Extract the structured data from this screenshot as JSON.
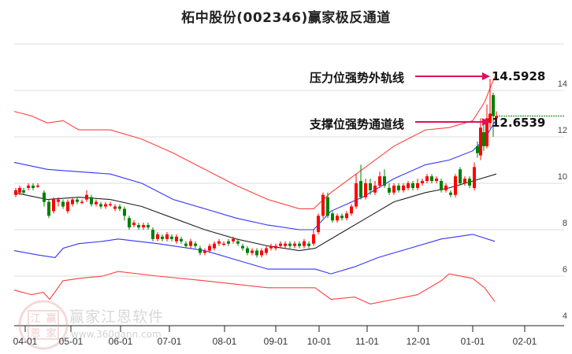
{
  "title": "柘中股份(002346)赢家极反通道",
  "annotations": {
    "pressure": {
      "label": "压力位强势外轨线",
      "value": "14.5928"
    },
    "support": {
      "label": "支撑位强势通道线",
      "value": "12.6539"
    }
  },
  "watermark": {
    "text": "赢家江恩软件",
    "url": "www.360gann.com",
    "seal": [
      "江",
      "赢",
      "恩",
      "家"
    ]
  },
  "colors": {
    "up": "#ff0000",
    "down": "#008000",
    "outer_band": "#ff4040",
    "inner_band": "#3333ff",
    "mid": "#222222",
    "arrow": "#e0105a"
  },
  "chart_data": {
    "type": "candlestick",
    "title": "柘中股份(002346)赢家极反通道",
    "xlabel": "",
    "ylabel": "",
    "ylim": [
      4,
      16
    ],
    "y_ticks": [
      4,
      6,
      8,
      10,
      12,
      14
    ],
    "x_ticks": [
      "04-01",
      "05-01",
      "06-01",
      "07-01",
      "08-01",
      "09-01",
      "10-01",
      "11-01",
      "12-01",
      "01-01",
      "02-01"
    ],
    "grid": true,
    "legend": null,
    "annotations": [
      {
        "text": "压力位强势外轨线",
        "value": 14.5928
      },
      {
        "text": "支撑位强势通道线",
        "value": 12.6539
      }
    ],
    "last_price_line": 12.9,
    "series": [
      {
        "name": "upper_outer_band",
        "color": "red",
        "points": [
          [
            18,
            13.1
          ],
          [
            40,
            12.9
          ],
          [
            60,
            12.6
          ],
          [
            80,
            12.7
          ],
          [
            100,
            12.3
          ],
          [
            140,
            12.3
          ],
          [
            180,
            11.9
          ],
          [
            220,
            11.3
          ],
          [
            260,
            10.6
          ],
          [
            300,
            9.9
          ],
          [
            340,
            9.3
          ],
          [
            380,
            8.9
          ],
          [
            398,
            8.9
          ],
          [
            420,
            9.6
          ],
          [
            460,
            10.6
          ],
          [
            500,
            11.6
          ],
          [
            540,
            12.3
          ],
          [
            570,
            12.4
          ],
          [
            600,
            12.7
          ],
          [
            615,
            13.5
          ],
          [
            628,
            14.59
          ]
        ]
      },
      {
        "name": "upper_inner_band",
        "color": "blue",
        "points": [
          [
            18,
            10.9
          ],
          [
            60,
            10.6
          ],
          [
            100,
            10.5
          ],
          [
            140,
            10.4
          ],
          [
            180,
            10.0
          ],
          [
            220,
            9.3
          ],
          [
            260,
            8.9
          ],
          [
            300,
            8.5
          ],
          [
            340,
            8.2
          ],
          [
            380,
            8.0
          ],
          [
            398,
            8.0
          ],
          [
            420,
            8.8
          ],
          [
            460,
            9.4
          ],
          [
            500,
            10.2
          ],
          [
            540,
            10.8
          ],
          [
            570,
            11.0
          ],
          [
            600,
            11.4
          ],
          [
            615,
            11.9
          ],
          [
            628,
            12.65
          ]
        ]
      },
      {
        "name": "middle_line",
        "color": "black",
        "points": [
          [
            18,
            9.6
          ],
          [
            60,
            9.3
          ],
          [
            100,
            9.4
          ],
          [
            140,
            9.3
          ],
          [
            180,
            9.0
          ],
          [
            220,
            8.5
          ],
          [
            260,
            8.0
          ],
          [
            300,
            7.6
          ],
          [
            340,
            7.3
          ],
          [
            380,
            7.1
          ],
          [
            400,
            7.2
          ],
          [
            430,
            7.8
          ],
          [
            470,
            8.6
          ],
          [
            500,
            9.2
          ],
          [
            540,
            9.6
          ],
          [
            570,
            9.8
          ],
          [
            600,
            10.1
          ],
          [
            630,
            10.4
          ]
        ]
      },
      {
        "name": "lower_inner_band",
        "color": "blue",
        "points": [
          [
            18,
            7.1
          ],
          [
            50,
            6.9
          ],
          [
            70,
            6.8
          ],
          [
            80,
            7.2
          ],
          [
            100,
            7.4
          ],
          [
            130,
            7.5
          ],
          [
            150,
            7.6
          ],
          [
            200,
            7.4
          ],
          [
            260,
            7.1
          ],
          [
            300,
            6.7
          ],
          [
            340,
            6.3
          ],
          [
            400,
            6.3
          ],
          [
            420,
            6.1
          ],
          [
            450,
            6.4
          ],
          [
            480,
            6.8
          ],
          [
            520,
            7.2
          ],
          [
            560,
            7.6
          ],
          [
            600,
            7.8
          ],
          [
            628,
            7.5
          ]
        ]
      },
      {
        "name": "lower_outer_band",
        "color": "red",
        "points": [
          [
            18,
            5.4
          ],
          [
            40,
            5.2
          ],
          [
            55,
            5.3
          ],
          [
            63,
            5.0
          ],
          [
            80,
            5.8
          ],
          [
            100,
            5.9
          ],
          [
            130,
            6.0
          ],
          [
            150,
            6.2
          ],
          [
            200,
            6.0
          ],
          [
            260,
            5.8
          ],
          [
            340,
            5.5
          ],
          [
            400,
            5.5
          ],
          [
            420,
            5.0
          ],
          [
            450,
            5.1
          ],
          [
            470,
            4.8
          ],
          [
            500,
            5.0
          ],
          [
            530,
            5.2
          ],
          [
            560,
            5.8
          ],
          [
            570,
            6.1
          ],
          [
            600,
            5.9
          ],
          [
            615,
            5.5
          ],
          [
            628,
            4.9
          ]
        ]
      }
    ],
    "candles_approx": [
      [
        20,
        9.5,
        9.7,
        9.4,
        9.8
      ],
      [
        25,
        9.6,
        9.8,
        9.5,
        9.9
      ],
      [
        30,
        9.7,
        9.6,
        9.5,
        9.8
      ],
      [
        36,
        9.8,
        9.9,
        9.7,
        10.0
      ],
      [
        42,
        9.9,
        9.8,
        9.7,
        10.0
      ],
      [
        48,
        9.9,
        9.9,
        9.8,
        10.0
      ],
      [
        56,
        9.6,
        9.2,
        9.0,
        9.7
      ],
      [
        62,
        9.2,
        8.6,
        8.5,
        9.3
      ],
      [
        68,
        8.8,
        9.3,
        8.7,
        9.4
      ],
      [
        74,
        9.2,
        9.3,
        9.0,
        9.4
      ],
      [
        80,
        9.2,
        9.0,
        8.9,
        9.3
      ],
      [
        86,
        8.8,
        9.2,
        8.7,
        9.3
      ],
      [
        92,
        9.1,
        9.3,
        9.0,
        9.4
      ],
      [
        98,
        9.3,
        9.2,
        9.1,
        9.4
      ],
      [
        104,
        9.2,
        9.2,
        9.1,
        9.3
      ],
      [
        110,
        9.3,
        9.5,
        9.2,
        9.7
      ],
      [
        116,
        9.4,
        9.1,
        9.0,
        9.5
      ],
      [
        122,
        9.1,
        9.2,
        9.0,
        9.3
      ],
      [
        128,
        9.1,
        9.0,
        8.9,
        9.2
      ],
      [
        134,
        9.0,
        9.1,
        8.9,
        9.2
      ],
      [
        140,
        9.1,
        9.1,
        9.0,
        9.2
      ],
      [
        146,
        8.9,
        9.0,
        8.8,
        9.1
      ],
      [
        152,
        9.0,
        8.9,
        8.8,
        9.1
      ],
      [
        158,
        8.9,
        8.6,
        8.4,
        9.0
      ],
      [
        164,
        8.5,
        8.1,
        8.0,
        8.6
      ],
      [
        170,
        8.2,
        8.3,
        8.1,
        8.4
      ],
      [
        176,
        8.2,
        8.1,
        8.0,
        8.3
      ],
      [
        182,
        8.1,
        8.2,
        8.0,
        8.3
      ],
      [
        188,
        8.2,
        8.1,
        8.0,
        8.3
      ],
      [
        194,
        8.0,
        7.6,
        7.5,
        8.1
      ],
      [
        200,
        7.6,
        7.8,
        7.5,
        7.9
      ],
      [
        206,
        7.7,
        7.6,
        7.5,
        7.8
      ],
      [
        212,
        7.6,
        7.8,
        7.5,
        7.9
      ],
      [
        218,
        7.7,
        7.6,
        7.5,
        7.8
      ],
      [
        224,
        7.5,
        7.7,
        7.4,
        7.8
      ],
      [
        230,
        7.6,
        7.5,
        7.4,
        7.7
      ],
      [
        236,
        7.4,
        7.3,
        7.2,
        7.5
      ],
      [
        242,
        7.3,
        7.5,
        7.2,
        7.6
      ],
      [
        248,
        7.4,
        7.3,
        7.2,
        7.5
      ],
      [
        254,
        7.2,
        7.0,
        6.9,
        7.3
      ],
      [
        260,
        7.0,
        7.1,
        6.9,
        7.2
      ],
      [
        266,
        7.1,
        7.3,
        7.0,
        7.4
      ],
      [
        272,
        7.2,
        7.4,
        7.1,
        7.5
      ],
      [
        278,
        7.4,
        7.5,
        7.3,
        7.6
      ],
      [
        284,
        7.4,
        7.4,
        7.3,
        7.5
      ],
      [
        290,
        7.5,
        7.4,
        7.3,
        7.6
      ],
      [
        296,
        7.5,
        7.6,
        7.4,
        7.7
      ],
      [
        302,
        7.5,
        7.4,
        7.3,
        7.6
      ],
      [
        308,
        7.3,
        7.2,
        7.1,
        7.4
      ],
      [
        314,
        7.2,
        7.0,
        6.9,
        7.3
      ],
      [
        320,
        7.0,
        7.1,
        6.9,
        7.2
      ],
      [
        326,
        7.1,
        6.9,
        6.8,
        7.2
      ],
      [
        332,
        6.9,
        7.1,
        6.8,
        7.2
      ],
      [
        338,
        7.0,
        7.2,
        6.9,
        7.3
      ],
      [
        344,
        7.2,
        7.3,
        7.1,
        7.4
      ],
      [
        350,
        7.2,
        7.3,
        7.1,
        7.4
      ],
      [
        356,
        7.3,
        7.4,
        7.2,
        7.5
      ],
      [
        362,
        7.3,
        7.4,
        7.2,
        7.5
      ],
      [
        368,
        7.4,
        7.3,
        7.2,
        7.5
      ],
      [
        374,
        7.3,
        7.4,
        7.2,
        7.5
      ],
      [
        380,
        7.4,
        7.3,
        7.2,
        7.5
      ],
      [
        386,
        7.3,
        7.5,
        7.2,
        7.6
      ],
      [
        392,
        7.4,
        7.3,
        7.2,
        7.5
      ],
      [
        398,
        7.4,
        7.8,
        7.3,
        8.0
      ],
      [
        404,
        7.9,
        8.6,
        7.8,
        8.7
      ],
      [
        410,
        8.6,
        9.5,
        8.5,
        9.6
      ],
      [
        416,
        9.4,
        8.6,
        8.5,
        9.6
      ],
      [
        422,
        8.7,
        8.4,
        8.3,
        8.8
      ],
      [
        428,
        8.4,
        8.6,
        8.3,
        8.7
      ],
      [
        434,
        8.6,
        8.5,
        8.4,
        8.7
      ],
      [
        440,
        8.5,
        8.7,
        8.4,
        8.8
      ],
      [
        446,
        8.7,
        9.0,
        8.6,
        9.1
      ],
      [
        452,
        9.0,
        10.0,
        8.9,
        10.4
      ],
      [
        458,
        10.1,
        9.4,
        9.3,
        10.8
      ],
      [
        464,
        9.4,
        10.0,
        9.3,
        10.2
      ],
      [
        470,
        10.0,
        9.7,
        9.5,
        10.2
      ],
      [
        476,
        9.6,
        9.9,
        9.5,
        10.1
      ],
      [
        482,
        9.9,
        10.3,
        9.8,
        10.5
      ],
      [
        488,
        10.3,
        9.9,
        9.8,
        10.6
      ],
      [
        494,
        9.8,
        9.6,
        9.5,
        10.0
      ],
      [
        500,
        9.6,
        9.9,
        9.5,
        10.0
      ],
      [
        506,
        9.9,
        9.7,
        9.6,
        10.0
      ],
      [
        512,
        9.7,
        9.9,
        9.6,
        10.0
      ],
      [
        518,
        9.8,
        10.0,
        9.7,
        10.1
      ],
      [
        524,
        10.0,
        9.8,
        9.7,
        10.1
      ],
      [
        530,
        9.8,
        10.0,
        9.7,
        10.2
      ],
      [
        536,
        10.0,
        10.1,
        9.9,
        10.2
      ],
      [
        542,
        10.1,
        10.3,
        10.0,
        10.4
      ],
      [
        548,
        10.3,
        10.1,
        10.0,
        10.4
      ],
      [
        554,
        10.1,
        10.2,
        10.0,
        10.3
      ],
      [
        560,
        10.1,
        9.7,
        9.6,
        10.2
      ],
      [
        566,
        9.7,
        9.9,
        9.6,
        10.0
      ],
      [
        572,
        9.6,
        9.5,
        9.4,
        9.7
      ],
      [
        578,
        9.5,
        10.3,
        9.4,
        10.4
      ],
      [
        584,
        10.6,
        10.0,
        9.9,
        10.7
      ],
      [
        590,
        10.0,
        10.2,
        9.9,
        10.3
      ],
      [
        596,
        10.2,
        9.9,
        9.8,
        10.3
      ],
      [
        602,
        9.8,
        10.7,
        9.7,
        10.9
      ],
      [
        606,
        11.6,
        11.3,
        11.1,
        11.8
      ],
      [
        610,
        11.2,
        12.4,
        11.0,
        12.8
      ],
      [
        614,
        12.2,
        11.6,
        11.4,
        12.5
      ],
      [
        618,
        11.6,
        12.8,
        11.5,
        13.4
      ],
      [
        622,
        12.6,
        13.0,
        12.4,
        14.5
      ],
      [
        626,
        13.8,
        12.9,
        12.0,
        13.9
      ],
      [
        630,
        12.8,
        12.9,
        12.7,
        13.1
      ]
    ]
  }
}
